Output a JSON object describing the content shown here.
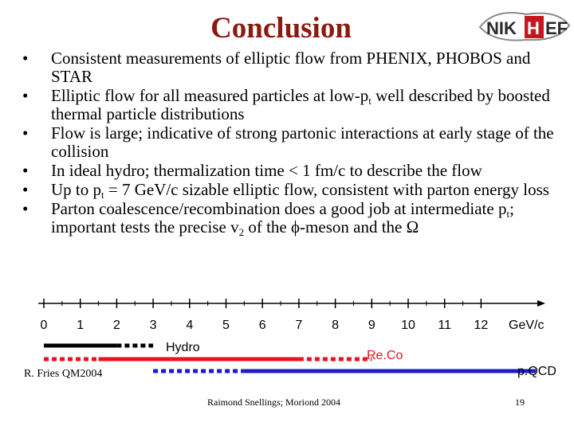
{
  "header": {
    "title": "Conclusion"
  },
  "logo": {
    "text": "NIKHEF"
  },
  "bullets": [
    [
      "Consistent measurements of elliptic flow from PHENIX, PHOBOS and STAR"
    ],
    [
      "Elliptic flow for all measured particles at low-p",
      {
        "sub": "t"
      },
      " well described by boosted thermal particle distributions"
    ],
    [
      "Flow is large; indicative of strong partonic interactions at early stage of the collision"
    ],
    [
      "In ideal hydro; thermalization time < 1 fm/c to describe the flow"
    ],
    [
      "Up to p",
      {
        "sub": "t"
      },
      " = 7 GeV/c sizable elliptic flow, consistent with parton energy loss"
    ],
    [
      "Parton coalescence/recombination does a good job at intermediate p",
      {
        "sub": "t"
      },
      "; important tests the precise v",
      {
        "sub": "2"
      },
      " of the ϕ-meson and the Ω"
    ]
  ],
  "scale": {
    "ticks": [
      "0",
      "1",
      "2",
      "3",
      "4",
      "5",
      "6",
      "7",
      "8",
      "9",
      "10",
      "11",
      "12"
    ],
    "unit": "GeV/c",
    "labels": {
      "hydro": "Hydro",
      "reco": "Re.Co",
      "pqcd": "p.QCD"
    },
    "colors": {
      "hydro": "#000000",
      "reco": "#e8141b",
      "pqcd": "#1a1ad0"
    },
    "ranges": {
      "hydro_solid": [
        0,
        2
      ],
      "hydro_dashed": [
        2,
        3
      ],
      "reco_dashed": [
        0,
        1.5
      ],
      "reco_solid": [
        1.5,
        7
      ],
      "reco_dashed2": [
        7,
        9
      ],
      "pqcd_dashed": [
        3,
        5.5
      ],
      "pqcd_solid": [
        5.5,
        13.5
      ]
    }
  },
  "footer": {
    "reference": "R. Fries QM2004",
    "author": "Raimond Snellings; Moriond 2004",
    "page": "19"
  }
}
